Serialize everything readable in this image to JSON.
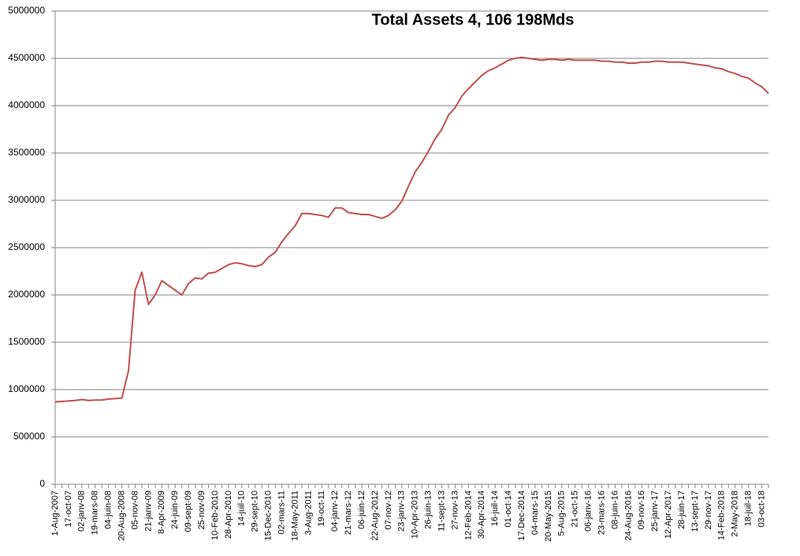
{
  "chart_data": {
    "type": "line",
    "title": "Total Assets 4, 106 198Mds",
    "categories": [
      "1-Aug-2007",
      null,
      "17-oct-07",
      null,
      "02-janv-08",
      null,
      "19-mars-08",
      null,
      "04-juin-08",
      null,
      "20-Aug-2008",
      null,
      "05-nov-08",
      null,
      "21-janv-09",
      null,
      "8-Apr-2009",
      null,
      "24-juin-09",
      null,
      "09-sept-09",
      null,
      "25-nov-09",
      null,
      "10-Feb-2010",
      null,
      "28-Apr-2010",
      null,
      "14-juil-10",
      null,
      "29-sept-10",
      null,
      "15-Dec-2010",
      null,
      "02-mars-11",
      null,
      "18-May-2011",
      null,
      "3-Aug-2011",
      null,
      "19-oct-11",
      null,
      "04-janv-12",
      null,
      "21-mars-12",
      null,
      "06-juin-12",
      null,
      "22-Aug-2012",
      null,
      "07-nov-12",
      null,
      "23-janv-13",
      null,
      "10-Apr-2013",
      null,
      "26-juin-13",
      null,
      "11-sept-13",
      null,
      "27-nov-13",
      null,
      "12-Feb-2014",
      null,
      "30-Apr-2014",
      null,
      "16-juil-14",
      null,
      "01-oct-14",
      null,
      "17-Dec-2014",
      null,
      "04-mars-15",
      null,
      "20-May-2015",
      null,
      "5-Aug-2015",
      null,
      "21-oct-15",
      null,
      "06-janv-16",
      null,
      "23-mars-16",
      null,
      "08-juin-16",
      null,
      "24-Aug-2016",
      null,
      "09-nov-16",
      null,
      "25-janv-17",
      null,
      "12-Apr-2017",
      null,
      "28-juin-17",
      null,
      "13-sept-17",
      null,
      "29-nov-17",
      null,
      "14-Feb-2018",
      null,
      "2-May-2018",
      null,
      "18-juil-18",
      null,
      "03-oct-18",
      null
    ],
    "values": [
      870000,
      875000,
      880000,
      885000,
      895000,
      885000,
      890000,
      890000,
      900000,
      905000,
      910000,
      1200000,
      2050000,
      2240000,
      1900000,
      2000000,
      2150000,
      2100000,
      2050000,
      2000000,
      2120000,
      2180000,
      2170000,
      2230000,
      2240000,
      2280000,
      2320000,
      2340000,
      2330000,
      2310000,
      2300000,
      2320000,
      2400000,
      2450000,
      2560000,
      2650000,
      2730000,
      2860000,
      2860000,
      2850000,
      2840000,
      2820000,
      2920000,
      2920000,
      2870000,
      2860000,
      2850000,
      2850000,
      2830000,
      2810000,
      2840000,
      2900000,
      2990000,
      3150000,
      3300000,
      3400000,
      3520000,
      3650000,
      3750000,
      3900000,
      3980000,
      4100000,
      4180000,
      4250000,
      4320000,
      4370000,
      4400000,
      4440000,
      4480000,
      4500000,
      4510000,
      4500000,
      4490000,
      4480000,
      4490000,
      4490000,
      4480000,
      4490000,
      4480000,
      4480000,
      4480000,
      4480000,
      4470000,
      4470000,
      4460000,
      4460000,
      4450000,
      4450000,
      4460000,
      4460000,
      4470000,
      4470000,
      4460000,
      4460000,
      4460000,
      4450000,
      4440000,
      4430000,
      4420000,
      4400000,
      4390000,
      4360000,
      4340000,
      4310000,
      4290000,
      4240000,
      4200000,
      4130000
    ],
    "color": "#c0504d",
    "ylim": [
      0,
      5000000
    ],
    "yticks": [
      0,
      500000,
      1000000,
      1500000,
      2000000,
      2500000,
      3000000,
      3500000,
      4000000,
      4500000,
      5000000
    ],
    "grid": true
  }
}
